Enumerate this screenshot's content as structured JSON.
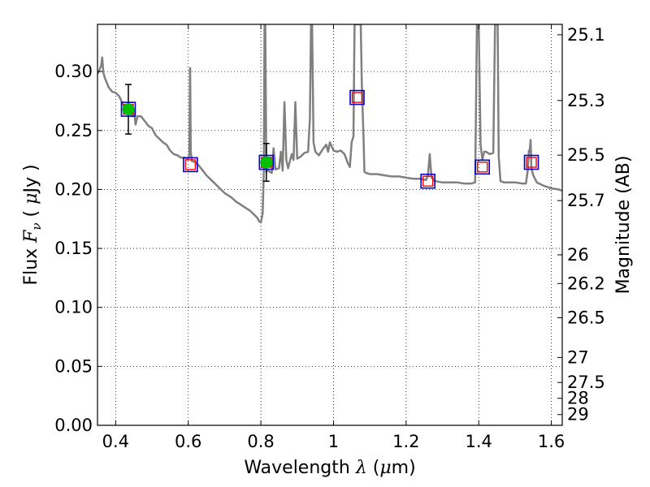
{
  "chart_data": {
    "type": "scatter",
    "title": "",
    "xlabel": "Wavelength  λ (μm)",
    "ylabel": "Flux  F_ν  ( μJy )",
    "y2label": "Magnitude (AB)",
    "xlim": [
      0.35,
      1.63
    ],
    "ylim": [
      0.0,
      0.34
    ],
    "grid": true,
    "x_ticks": [
      {
        "v": 0.4,
        "t": "0.4"
      },
      {
        "v": 0.6,
        "t": "0.6"
      },
      {
        "v": 0.8,
        "t": "0.8"
      },
      {
        "v": 1.0,
        "t": "1"
      },
      {
        "v": 1.2,
        "t": "1.2"
      },
      {
        "v": 1.4,
        "t": "1.4"
      },
      {
        "v": 1.6,
        "t": "1.6"
      }
    ],
    "y_ticks": [
      {
        "v": 0.0,
        "t": "0.00"
      },
      {
        "v": 0.05,
        "t": "0.05"
      },
      {
        "v": 0.1,
        "t": "0.10"
      },
      {
        "v": 0.15,
        "t": "0.15"
      },
      {
        "v": 0.2,
        "t": "0.20"
      },
      {
        "v": 0.25,
        "t": "0.25"
      },
      {
        "v": 0.3,
        "t": "0.30"
      }
    ],
    "y2_ticks": [
      {
        "v": 25.1,
        "t": "25.1"
      },
      {
        "v": 25.3,
        "t": "25.3"
      },
      {
        "v": 25.5,
        "t": "25.5"
      },
      {
        "v": 25.7,
        "t": "25.7"
      },
      {
        "v": 26,
        "t": "26"
      },
      {
        "v": 26.2,
        "t": "26.2"
      },
      {
        "v": 26.5,
        "t": "26.5"
      },
      {
        "v": 27,
        "t": "27"
      },
      {
        "v": 27.5,
        "t": "27.5"
      },
      {
        "v": 28,
        "t": "28"
      },
      {
        "v": 29,
        "t": "29"
      }
    ],
    "sed_model": {
      "color": "#808080",
      "points": [
        [
          0.35,
          0.298
        ],
        [
          0.355,
          0.301
        ],
        [
          0.36,
          0.305
        ],
        [
          0.363,
          0.312
        ],
        [
          0.366,
          0.299
        ],
        [
          0.37,
          0.295
        ],
        [
          0.38,
          0.287
        ],
        [
          0.39,
          0.283
        ],
        [
          0.4,
          0.282
        ],
        [
          0.41,
          0.279
        ],
        [
          0.42,
          0.272
        ],
        [
          0.43,
          0.268
        ],
        [
          0.44,
          0.266
        ],
        [
          0.445,
          0.262
        ],
        [
          0.45,
          0.268
        ],
        [
          0.455,
          0.255
        ],
        [
          0.46,
          0.262
        ],
        [
          0.47,
          0.262
        ],
        [
          0.48,
          0.258
        ],
        [
          0.49,
          0.254
        ],
        [
          0.5,
          0.252
        ],
        [
          0.51,
          0.246
        ],
        [
          0.52,
          0.243
        ],
        [
          0.53,
          0.24
        ],
        [
          0.54,
          0.238
        ],
        [
          0.55,
          0.233
        ],
        [
          0.56,
          0.23
        ],
        [
          0.57,
          0.229
        ],
        [
          0.58,
          0.227
        ],
        [
          0.59,
          0.227
        ],
        [
          0.6,
          0.226
        ],
        [
          0.603,
          0.23
        ],
        [
          0.605,
          0.303
        ],
        [
          0.607,
          0.232
        ],
        [
          0.61,
          0.224
        ],
        [
          0.62,
          0.223
        ],
        [
          0.63,
          0.22
        ],
        [
          0.64,
          0.216
        ],
        [
          0.65,
          0.212
        ],
        [
          0.66,
          0.209
        ],
        [
          0.67,
          0.206
        ],
        [
          0.68,
          0.203
        ],
        [
          0.69,
          0.2
        ],
        [
          0.7,
          0.197
        ],
        [
          0.71,
          0.195
        ],
        [
          0.72,
          0.193
        ],
        [
          0.73,
          0.19
        ],
        [
          0.74,
          0.188
        ],
        [
          0.75,
          0.186
        ],
        [
          0.76,
          0.184
        ],
        [
          0.77,
          0.182
        ],
        [
          0.78,
          0.179
        ],
        [
          0.79,
          0.176
        ],
        [
          0.795,
          0.173
        ],
        [
          0.8,
          0.172
        ],
        [
          0.805,
          0.18
        ],
        [
          0.808,
          0.215
        ],
        [
          0.81,
          0.34
        ],
        [
          0.812,
          0.34
        ],
        [
          0.815,
          0.215
        ],
        [
          0.82,
          0.216
        ],
        [
          0.83,
          0.214
        ],
        [
          0.835,
          0.235
        ],
        [
          0.84,
          0.217
        ],
        [
          0.85,
          0.218
        ],
        [
          0.855,
          0.232
        ],
        [
          0.86,
          0.216
        ],
        [
          0.865,
          0.274
        ],
        [
          0.87,
          0.225
        ],
        [
          0.875,
          0.218
        ],
        [
          0.88,
          0.224
        ],
        [
          0.885,
          0.23
        ],
        [
          0.89,
          0.225
        ],
        [
          0.895,
          0.274
        ],
        [
          0.9,
          0.226
        ],
        [
          0.91,
          0.228
        ],
        [
          0.92,
          0.231
        ],
        [
          0.93,
          0.232
        ],
        [
          0.935,
          0.26
        ],
        [
          0.938,
          0.34
        ],
        [
          0.941,
          0.34
        ],
        [
          0.945,
          0.24
        ],
        [
          0.95,
          0.232
        ],
        [
          0.96,
          0.229
        ],
        [
          0.97,
          0.234
        ],
        [
          0.98,
          0.238
        ],
        [
          0.985,
          0.232
        ],
        [
          0.99,
          0.24
        ],
        [
          1.0,
          0.233
        ],
        [
          1.01,
          0.232
        ],
        [
          1.02,
          0.233
        ],
        [
          1.03,
          0.23
        ],
        [
          1.04,
          0.222
        ],
        [
          1.045,
          0.219
        ],
        [
          1.05,
          0.24
        ],
        [
          1.055,
          0.245
        ],
        [
          1.058,
          0.34
        ],
        [
          1.075,
          0.34
        ],
        [
          1.078,
          0.29
        ],
        [
          1.08,
          0.27
        ],
        [
          1.083,
          0.24
        ],
        [
          1.085,
          0.215
        ],
        [
          1.09,
          0.214
        ],
        [
          1.1,
          0.213
        ],
        [
          1.12,
          0.213
        ],
        [
          1.14,
          0.212
        ],
        [
          1.16,
          0.211
        ],
        [
          1.18,
          0.211
        ],
        [
          1.2,
          0.21
        ],
        [
          1.22,
          0.209
        ],
        [
          1.24,
          0.209
        ],
        [
          1.255,
          0.208
        ],
        [
          1.26,
          0.212
        ],
        [
          1.265,
          0.23
        ],
        [
          1.27,
          0.21
        ],
        [
          1.28,
          0.207
        ],
        [
          1.3,
          0.206
        ],
        [
          1.32,
          0.206
        ],
        [
          1.34,
          0.206
        ],
        [
          1.36,
          0.205
        ],
        [
          1.38,
          0.205
        ],
        [
          1.39,
          0.206
        ],
        [
          1.395,
          0.34
        ],
        [
          1.4,
          0.34
        ],
        [
          1.405,
          0.238
        ],
        [
          1.41,
          0.225
        ],
        [
          1.415,
          0.232
        ],
        [
          1.42,
          0.232
        ],
        [
          1.43,
          0.23
        ],
        [
          1.44,
          0.231
        ],
        [
          1.445,
          0.34
        ],
        [
          1.452,
          0.34
        ],
        [
          1.455,
          0.228
        ],
        [
          1.46,
          0.207
        ],
        [
          1.47,
          0.206
        ],
        [
          1.48,
          0.206
        ],
        [
          1.5,
          0.206
        ],
        [
          1.52,
          0.205
        ],
        [
          1.53,
          0.205
        ],
        [
          1.535,
          0.216
        ],
        [
          1.538,
          0.233
        ],
        [
          1.54,
          0.232
        ],
        [
          1.543,
          0.242
        ],
        [
          1.545,
          0.218
        ],
        [
          1.55,
          0.212
        ],
        [
          1.56,
          0.206
        ],
        [
          1.58,
          0.203
        ],
        [
          1.6,
          0.201
        ],
        [
          1.62,
          0.2
        ],
        [
          1.63,
          0.199
        ]
      ]
    },
    "observed_points": {
      "color": "#00bf00",
      "points": [
        {
          "x": 0.435,
          "y": 0.268,
          "yerr": 0.021
        },
        {
          "x": 0.815,
          "y": 0.223,
          "yerr": 0.016
        }
      ]
    },
    "model_band_squares": {
      "color": "#ff0000",
      "points": [
        {
          "x": 0.435,
          "y": 0.268
        },
        {
          "x": 0.606,
          "y": 0.221
        },
        {
          "x": 0.815,
          "y": 0.223
        },
        {
          "x": 1.065,
          "y": 0.278
        },
        {
          "x": 1.26,
          "y": 0.207
        },
        {
          "x": 1.41,
          "y": 0.219
        },
        {
          "x": 1.545,
          "y": 0.223
        }
      ]
    },
    "fit_band_squares": {
      "color": "#0000cc",
      "points": [
        {
          "x": 0.435,
          "y": 0.268
        },
        {
          "x": 0.606,
          "y": 0.221
        },
        {
          "x": 0.815,
          "y": 0.223
        },
        {
          "x": 1.065,
          "y": 0.278
        },
        {
          "x": 1.26,
          "y": 0.207
        },
        {
          "x": 1.41,
          "y": 0.219
        },
        {
          "x": 1.545,
          "y": 0.223
        }
      ]
    }
  }
}
